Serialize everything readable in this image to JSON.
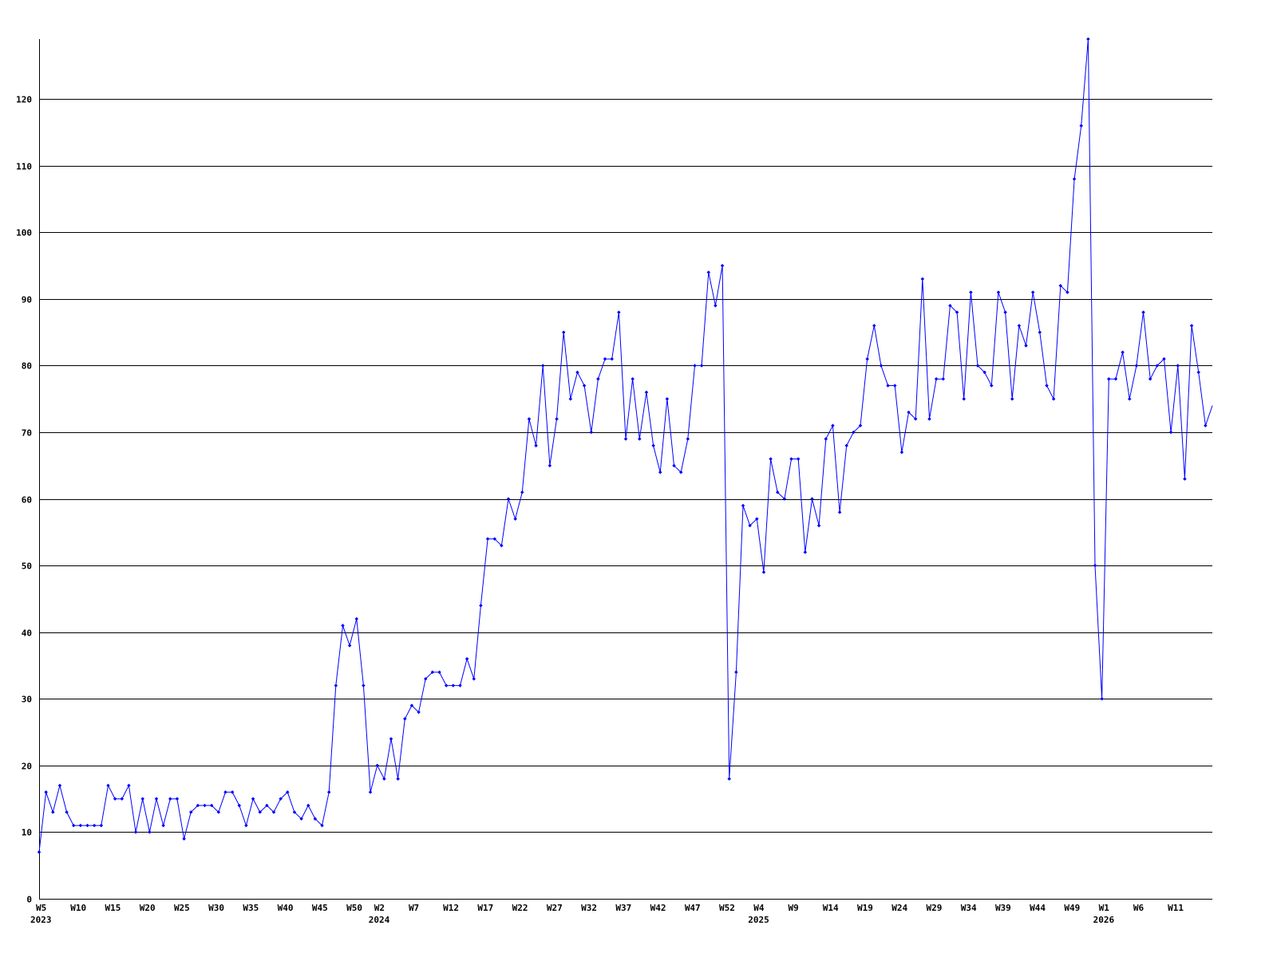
{
  "chart_data": {
    "type": "line",
    "title": "",
    "xlabel": "",
    "ylabel": "",
    "ylim": [
      0,
      129
    ],
    "yticks": [
      0,
      10,
      20,
      30,
      40,
      50,
      60,
      70,
      80,
      90,
      100,
      110,
      120
    ],
    "grid": "horizontal",
    "colors": {
      "line": "#0000ff",
      "grid": "#000000",
      "axis": "#000000"
    },
    "xtick_labels": [
      {
        "index": 0,
        "label": "W5",
        "year": "2023"
      },
      {
        "index": 5,
        "label": "W10"
      },
      {
        "index": 10,
        "label": "W15"
      },
      {
        "index": 15,
        "label": "W20"
      },
      {
        "index": 20,
        "label": "W25"
      },
      {
        "index": 25,
        "label": "W30"
      },
      {
        "index": 30,
        "label": "W35"
      },
      {
        "index": 35,
        "label": "W40"
      },
      {
        "index": 40,
        "label": "W45"
      },
      {
        "index": 45,
        "label": "W50"
      },
      {
        "index": 49,
        "label": "W2",
        "year": "2024"
      },
      {
        "index": 54,
        "label": "W7"
      },
      {
        "index": 59,
        "label": "W12"
      },
      {
        "index": 64,
        "label": "W17"
      },
      {
        "index": 69,
        "label": "W22"
      },
      {
        "index": 74,
        "label": "W27"
      },
      {
        "index": 79,
        "label": "W32"
      },
      {
        "index": 84,
        "label": "W37"
      },
      {
        "index": 89,
        "label": "W42"
      },
      {
        "index": 94,
        "label": "W47"
      },
      {
        "index": 99,
        "label": "W52"
      },
      {
        "index": 104,
        "label": "W4",
        "year": "2025"
      },
      {
        "index": 109,
        "label": "W9"
      },
      {
        "index": 114,
        "label": "W14"
      },
      {
        "index": 119,
        "label": "W19"
      },
      {
        "index": 124,
        "label": "W24"
      },
      {
        "index": 129,
        "label": "W29"
      },
      {
        "index": 134,
        "label": "W34"
      },
      {
        "index": 139,
        "label": "W39"
      },
      {
        "index": 144,
        "label": "W44"
      },
      {
        "index": 149,
        "label": "W49"
      },
      {
        "index": 154,
        "label": "W1",
        "year": "2026"
      },
      {
        "index": 159,
        "label": "W6"
      },
      {
        "index": 164,
        "label": "W11"
      }
    ],
    "series": [
      {
        "values": [
          7,
          16,
          13,
          17,
          13,
          11,
          11,
          11,
          11,
          11,
          17,
          15,
          15,
          17,
          10,
          15,
          10,
          15,
          11,
          15,
          15,
          9,
          13,
          14,
          14,
          14,
          13,
          16,
          16,
          14,
          11,
          15,
          13,
          14,
          13,
          15,
          16,
          13,
          12,
          14,
          12,
          11,
          16,
          32,
          41,
          38,
          42,
          32,
          16,
          20,
          18,
          24,
          18,
          27,
          29,
          28,
          33,
          34,
          34,
          32,
          32,
          32,
          36,
          33,
          44,
          54,
          54,
          53,
          60,
          57,
          61,
          72,
          68,
          80,
          65,
          72,
          85,
          75,
          79,
          77,
          70,
          78,
          81,
          81,
          88,
          69,
          78,
          69,
          76,
          68,
          64,
          75,
          65,
          64,
          69,
          80,
          80,
          94,
          89,
          95,
          18,
          34,
          59,
          56,
          57,
          49,
          66,
          61,
          60,
          66,
          66,
          52,
          60,
          56,
          69,
          71,
          58,
          68,
          70,
          71,
          81,
          86,
          80,
          77,
          77,
          67,
          73,
          72,
          93,
          72,
          78,
          78,
          89,
          88,
          75,
          91,
          80,
          79,
          77,
          91,
          88,
          75,
          86,
          83,
          91,
          85,
          77,
          75,
          92,
          91,
          108,
          116,
          129,
          50,
          30,
          78,
          78,
          82,
          75,
          80,
          88,
          78,
          80,
          81,
          70,
          80,
          63,
          86,
          79,
          71,
          74
        ]
      }
    ]
  }
}
